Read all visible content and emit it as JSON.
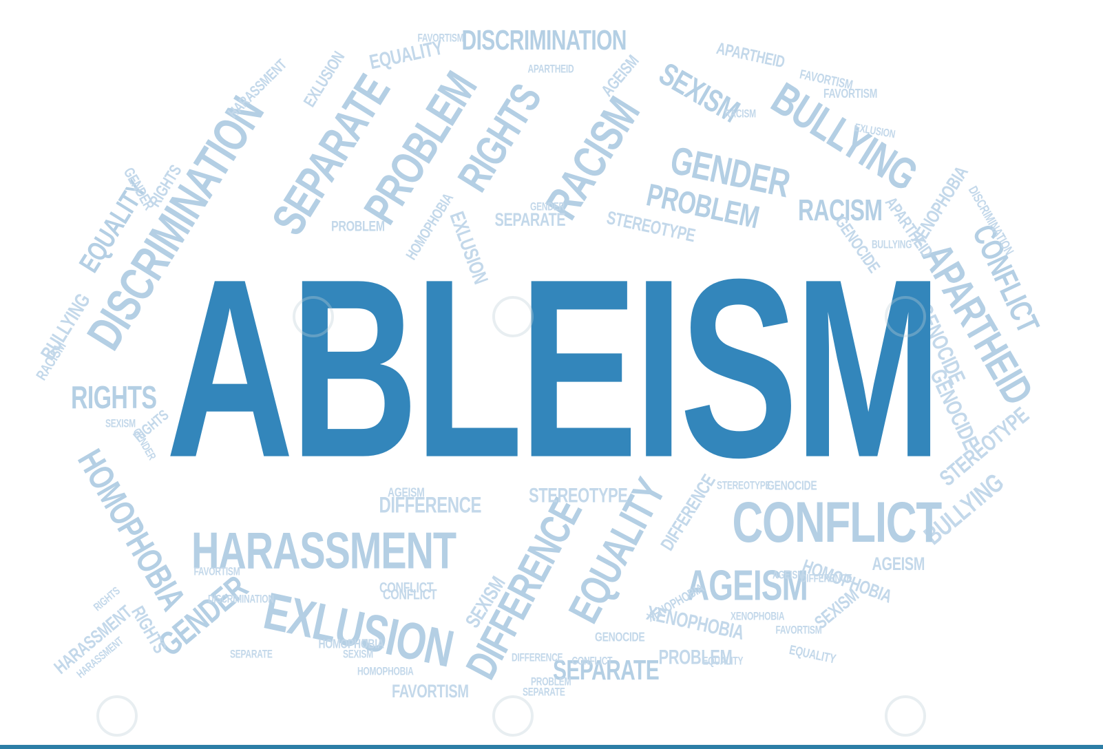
{
  "headline": "ABLEISM",
  "colors": {
    "headline": "#3386BB",
    "word_large": "#B4CFE4",
    "word_small": "#C3D8EA",
    "bottom_rule": "#2C7EA6",
    "watermark": "#C7D2DA"
  },
  "cloud_words": [
    {
      "text": "DISCRIMINATION",
      "size": "xl"
    },
    {
      "text": "SEPARATE",
      "size": "xl"
    },
    {
      "text": "PROBLEM",
      "size": "xl"
    },
    {
      "text": "RIGHTS",
      "size": "xl"
    },
    {
      "text": "RACISM",
      "size": "xl"
    },
    {
      "text": "SEXISM",
      "size": "lg"
    },
    {
      "text": "BULLYING",
      "size": "xl"
    },
    {
      "text": "GENDER",
      "size": "xl"
    },
    {
      "text": "PROBLEM",
      "size": "lg"
    },
    {
      "text": "RACISM",
      "size": "lg"
    },
    {
      "text": "XENOPHOBIA",
      "size": "md"
    },
    {
      "text": "APARTHEID",
      "size": "xl"
    },
    {
      "text": "CONFLICT",
      "size": "lg"
    },
    {
      "text": "GENOCIDE",
      "size": "md"
    },
    {
      "text": "GENOCIDE",
      "size": "md"
    },
    {
      "text": "STEREOTYPE",
      "size": "md"
    },
    {
      "text": "BULLYING",
      "size": "md"
    },
    {
      "text": "CONFLICT",
      "size": "xl"
    },
    {
      "text": "AGEISM",
      "size": "xl"
    },
    {
      "text": "AGEISM",
      "size": "md"
    },
    {
      "text": "HOMOPHOBIA",
      "size": "md"
    },
    {
      "text": "SEXISM",
      "size": "md"
    },
    {
      "text": "XENOPHOBIA",
      "size": "md"
    },
    {
      "text": "PROBLEM",
      "size": "md"
    },
    {
      "text": "SEPARATE",
      "size": "lg"
    },
    {
      "text": "EQUALITY",
      "size": "xl"
    },
    {
      "text": "DIFFERENCE",
      "size": "xl"
    },
    {
      "text": "EXLUSION",
      "size": "xl"
    },
    {
      "text": "HARASSMENT",
      "size": "xl"
    },
    {
      "text": "GENDER",
      "size": "lg"
    },
    {
      "text": "RIGHTS",
      "size": "md"
    },
    {
      "text": "HARASSMENT",
      "size": "sm"
    },
    {
      "text": "HOMOPHOBIA",
      "size": "lg"
    },
    {
      "text": "RIGHTS",
      "size": "lg"
    },
    {
      "text": "BULLYING",
      "size": "md"
    },
    {
      "text": "EQUALITY",
      "size": "lg"
    },
    {
      "text": "RACISM",
      "size": "sm"
    },
    {
      "text": "FAVORTISM",
      "size": "md"
    },
    {
      "text": "DIFFERENCE",
      "size": "md"
    },
    {
      "text": "DIFFERENCE",
      "size": "md"
    },
    {
      "text": "STEREOTYPE",
      "size": "md"
    },
    {
      "text": "SEXISM",
      "size": "md"
    },
    {
      "text": "CONFLICT",
      "size": "sm"
    },
    {
      "text": "HOMOPHOBIA",
      "size": "sm"
    },
    {
      "text": "EXLUSION",
      "size": "md"
    },
    {
      "text": "DISCRIMINATION",
      "size": "lg"
    },
    {
      "text": "EQUALITY",
      "size": "md"
    },
    {
      "text": "FAVORTISM",
      "size": "sm"
    },
    {
      "text": "APARTHEID",
      "size": "md"
    },
    {
      "text": "AGEISM",
      "size": "sm"
    },
    {
      "text": "GENDER",
      "size": "sm"
    },
    {
      "text": "STEREOTYPE",
      "size": "sm"
    },
    {
      "text": "SEPARATE",
      "size": "sm"
    },
    {
      "text": "EXLUSION",
      "size": "md"
    },
    {
      "text": "HARASSMENT",
      "size": "md"
    },
    {
      "text": "APARTHEID",
      "size": "sm"
    },
    {
      "text": "GENOCIDE",
      "size": "sm"
    },
    {
      "text": "FAVORTISM",
      "size": "sm"
    },
    {
      "text": "RIGHTS",
      "size": "sm"
    },
    {
      "text": "GENDER",
      "size": "sm"
    },
    {
      "text": "HOMOPHOBIA",
      "size": "sm"
    },
    {
      "text": "RIGHTS",
      "size": "sm"
    },
    {
      "text": "SEXISM",
      "size": "sm"
    },
    {
      "text": "AGEISM",
      "size": "sm"
    },
    {
      "text": "CONFLICT",
      "size": "sm"
    },
    {
      "text": "SEPARATE",
      "size": "sm"
    },
    {
      "text": "DISCRIMINATION",
      "size": "sm"
    },
    {
      "text": "FAVORTISM",
      "size": "sm"
    },
    {
      "text": "EQUALITY",
      "size": "sm"
    },
    {
      "text": "XENOPHOBIA",
      "size": "sm"
    },
    {
      "text": "RACISM",
      "size": "sm"
    },
    {
      "text": "PROBLEM",
      "size": "sm"
    },
    {
      "text": "DIFFERENCE",
      "size": "sm"
    },
    {
      "text": "GENOCIDE",
      "size": "sm"
    },
    {
      "text": "EXLUSION",
      "size": "sm"
    },
    {
      "text": "HARASSMENT",
      "size": "sm"
    },
    {
      "text": "FAVORTISM",
      "size": "sm"
    },
    {
      "text": "BULLYING",
      "size": "sm"
    },
    {
      "text": "STEREOTYPE",
      "size": "sm"
    },
    {
      "text": "AGEISM",
      "size": "sm"
    },
    {
      "text": "GENDER",
      "size": "sm"
    },
    {
      "text": "RIGHTS",
      "size": "sm"
    },
    {
      "text": "HOMOPHOBIA",
      "size": "sm"
    },
    {
      "text": "SEXISM",
      "size": "sm"
    },
    {
      "text": "CONFLICT",
      "size": "sm"
    },
    {
      "text": "EQUALITY",
      "size": "sm"
    },
    {
      "text": "GENOCIDE",
      "size": "sm"
    },
    {
      "text": "PROBLEM",
      "size": "sm"
    },
    {
      "text": "SEPARATE",
      "size": "sm"
    },
    {
      "text": "XENOPHOBIA",
      "size": "sm"
    },
    {
      "text": "APARTHEID",
      "size": "sm"
    },
    {
      "text": "DISCRIMINATION",
      "size": "sm"
    },
    {
      "text": "FAVORTISM",
      "size": "sm"
    },
    {
      "text": "DIFFERENCE",
      "size": "sm"
    }
  ]
}
